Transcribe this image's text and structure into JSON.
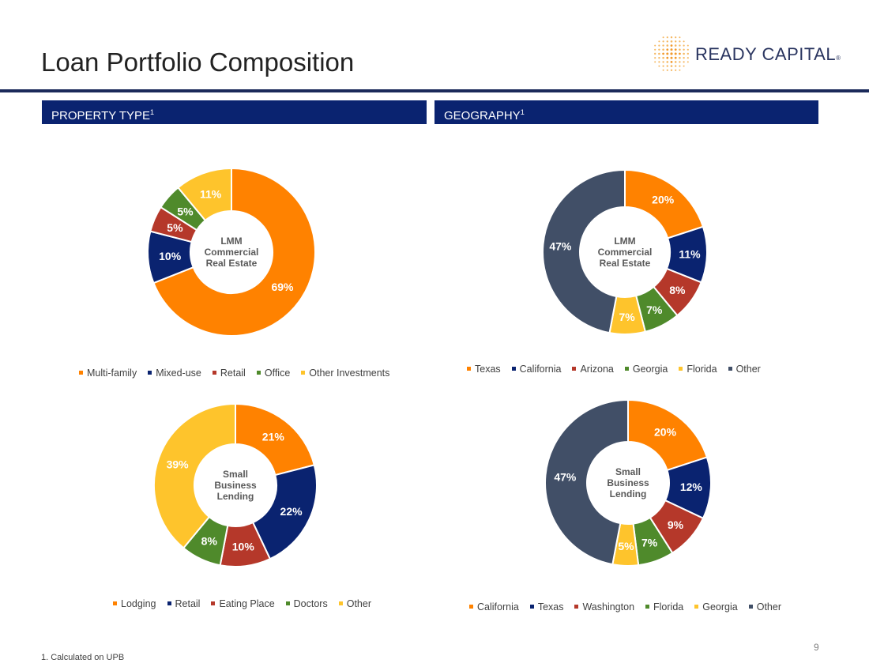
{
  "title": "Loan Portfolio Composition",
  "logo": {
    "text": "READY CAPITAL",
    "mark": "®"
  },
  "sections": {
    "left": {
      "label": "PROPERTY TYPE",
      "sup": "1"
    },
    "right": {
      "label": "GEOGRAPHY",
      "sup": "1"
    }
  },
  "footnote": "1. Calculated on UPB",
  "page_number": "9",
  "colors": {
    "orange": "#ff8200",
    "navy": "#0a2370",
    "red": "#b5382a",
    "green": "#4f8a2b",
    "yellow": "#fec42c",
    "slate": "#414f67",
    "header_bg": "#0a2370",
    "rule": "#1b2a5a"
  },
  "chart_data": [
    {
      "id": "lmm-property",
      "type": "pie",
      "center_label": [
        "LMM",
        "Commercial",
        "Real Estate"
      ],
      "categories": [
        "Multi-family",
        "Mixed-use",
        "Retail",
        "Office",
        "Other Investments"
      ],
      "values": [
        69,
        10,
        5,
        5,
        11
      ],
      "labels": [
        "69%",
        "10%",
        "5%",
        "5%",
        "11%"
      ],
      "colors": [
        "#ff8200",
        "#0a2370",
        "#b5382a",
        "#4f8a2b",
        "#fec42c"
      ],
      "label_colors": [
        "#ffffff",
        "#ffffff",
        "#ffffff",
        "#ffffff",
        "#ffffff"
      ],
      "direction": "clockwise",
      "legend_position": "bottom"
    },
    {
      "id": "lmm-geography",
      "type": "pie",
      "center_label": [
        "LMM",
        "Commercial",
        "Real Estate"
      ],
      "categories": [
        "Texas",
        "California",
        "Arizona",
        "Georgia",
        "Florida",
        "Other"
      ],
      "values": [
        20,
        11,
        8,
        7,
        7,
        47
      ],
      "labels": [
        "20%",
        "11%",
        "8%",
        "7%",
        "7%",
        "47%"
      ],
      "colors": [
        "#ff8200",
        "#0a2370",
        "#b5382a",
        "#4f8a2b",
        "#fec42c",
        "#414f67"
      ],
      "label_colors": [
        "#ffffff",
        "#ffffff",
        "#ffffff",
        "#ffffff",
        "#ffffff",
        "#ffffff"
      ],
      "direction": "clockwise",
      "legend_position": "bottom"
    },
    {
      "id": "sbl-property",
      "type": "pie",
      "center_label": [
        "Small",
        "Business",
        "Lending"
      ],
      "categories": [
        "Lodging",
        "Retail",
        "Eating Place",
        "Doctors",
        "Other"
      ],
      "values": [
        21,
        22,
        10,
        8,
        39
      ],
      "labels": [
        "21%",
        "22%",
        "10%",
        "8%",
        "39%"
      ],
      "colors": [
        "#ff8200",
        "#0a2370",
        "#b5382a",
        "#4f8a2b",
        "#fec42c"
      ],
      "label_colors": [
        "#ffffff",
        "#ffffff",
        "#ffffff",
        "#ffffff",
        "#ffffff"
      ],
      "direction": "clockwise",
      "legend_position": "bottom"
    },
    {
      "id": "sbl-geography",
      "type": "pie",
      "center_label": [
        "Small",
        "Business",
        "Lending"
      ],
      "categories": [
        "California",
        "Texas",
        "Washington",
        "Florida",
        "Georgia",
        "Other"
      ],
      "values": [
        20,
        12,
        9,
        7,
        5,
        47
      ],
      "labels": [
        "20%",
        "12%",
        "9%",
        "7%",
        "5%",
        "47%"
      ],
      "colors": [
        "#ff8200",
        "#0a2370",
        "#b5382a",
        "#4f8a2b",
        "#fec42c",
        "#414f67"
      ],
      "label_colors": [
        "#ffffff",
        "#ffffff",
        "#ffffff",
        "#ffffff",
        "#ffffff",
        "#ffffff"
      ],
      "direction": "clockwise",
      "legend_position": "bottom"
    }
  ]
}
